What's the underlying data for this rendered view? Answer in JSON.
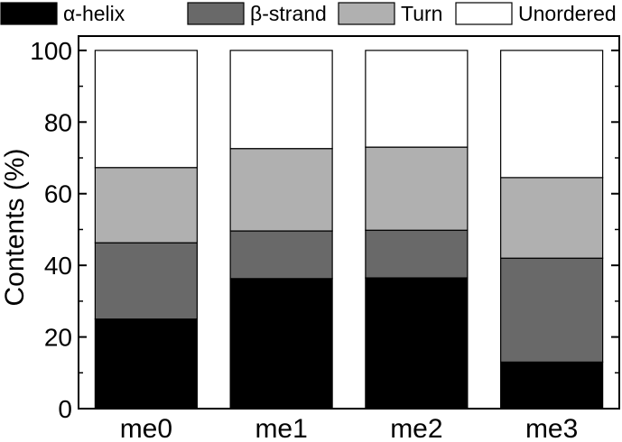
{
  "chart_data": {
    "type": "bar",
    "stacked": true,
    "categories": [
      "me0",
      "me1",
      "me2",
      "me3"
    ],
    "series": [
      {
        "name": "α-helix",
        "color": "#000000",
        "values": [
          25.0,
          36.3,
          36.5,
          13.0
        ]
      },
      {
        "name": "β-strand",
        "color": "#696969",
        "values": [
          21.3,
          13.3,
          13.3,
          29.0
        ]
      },
      {
        "name": "Turn",
        "color": "#b0b0b0",
        "values": [
          21.0,
          23.0,
          23.2,
          22.5
        ]
      },
      {
        "name": "Unordered",
        "color": "#ffffff",
        "values": [
          32.7,
          27.4,
          27.0,
          35.5
        ]
      }
    ],
    "ylabel": "Contents (%)",
    "xlabel": "",
    "ylim": [
      0,
      104
    ],
    "yticks": [
      0,
      20,
      40,
      60,
      80,
      100
    ],
    "legend_position": "top",
    "grid": false
  }
}
